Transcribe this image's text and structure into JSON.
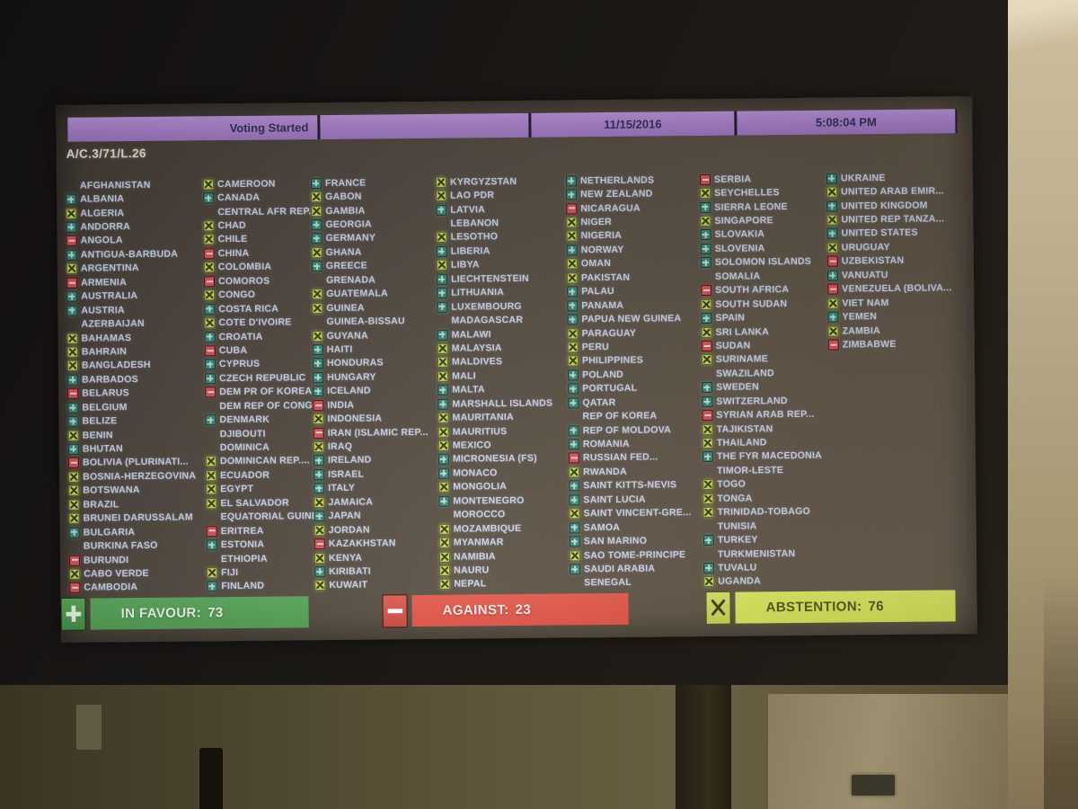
{
  "screen": {
    "header": {
      "status": "Voting Started",
      "date": "11/15/2016",
      "time": "5:08:04 PM"
    },
    "agenda_item": "A/C.3/71/L.26",
    "vote_legend": {
      "f": "in favour",
      "a": "against",
      "x": "abstention",
      "-": "not voting"
    },
    "columns": [
      [
        {
          "n": "AFGHANISTAN",
          "v": "-"
        },
        {
          "n": "ALBANIA",
          "v": "f"
        },
        {
          "n": "ALGERIA",
          "v": "x"
        },
        {
          "n": "ANDORRA",
          "v": "f"
        },
        {
          "n": "ANGOLA",
          "v": "a"
        },
        {
          "n": "ANTIGUA-BARBUDA",
          "v": "f"
        },
        {
          "n": "ARGENTINA",
          "v": "x"
        },
        {
          "n": "ARMENIA",
          "v": "a"
        },
        {
          "n": "AUSTRALIA",
          "v": "f"
        },
        {
          "n": "AUSTRIA",
          "v": "f"
        },
        {
          "n": "AZERBAIJAN",
          "v": "-"
        },
        {
          "n": "BAHAMAS",
          "v": "x"
        },
        {
          "n": "BAHRAIN",
          "v": "x"
        },
        {
          "n": "BANGLADESH",
          "v": "x"
        },
        {
          "n": "BARBADOS",
          "v": "f"
        },
        {
          "n": "BELARUS",
          "v": "a"
        },
        {
          "n": "BELGIUM",
          "v": "f"
        },
        {
          "n": "BELIZE",
          "v": "f"
        },
        {
          "n": "BENIN",
          "v": "x"
        },
        {
          "n": "BHUTAN",
          "v": "f"
        },
        {
          "n": "BOLIVIA (PLURINATI...",
          "v": "a"
        },
        {
          "n": "BOSNIA-HERZEGOVINA",
          "v": "x"
        },
        {
          "n": "BOTSWANA",
          "v": "x"
        },
        {
          "n": "BRAZIL",
          "v": "x"
        },
        {
          "n": "BRUNEI DARUSSALAM",
          "v": "x"
        },
        {
          "n": "BULGARIA",
          "v": "f"
        },
        {
          "n": "BURKINA FASO",
          "v": "-"
        },
        {
          "n": "BURUNDI",
          "v": "a"
        },
        {
          "n": "CABO VERDE",
          "v": "x"
        },
        {
          "n": "CAMBODIA",
          "v": "a"
        }
      ],
      [
        {
          "n": "CAMEROON",
          "v": "x"
        },
        {
          "n": "CANADA",
          "v": "f"
        },
        {
          "n": "CENTRAL AFR REP....",
          "v": "-"
        },
        {
          "n": "CHAD",
          "v": "x"
        },
        {
          "n": "CHILE",
          "v": "x"
        },
        {
          "n": "CHINA",
          "v": "a"
        },
        {
          "n": "COLOMBIA",
          "v": "x"
        },
        {
          "n": "COMOROS",
          "v": "a"
        },
        {
          "n": "CONGO",
          "v": "x"
        },
        {
          "n": "COSTA RICA",
          "v": "f"
        },
        {
          "n": "COTE D'IVOIRE",
          "v": "x"
        },
        {
          "n": "CROATIA",
          "v": "f"
        },
        {
          "n": "CUBA",
          "v": "a"
        },
        {
          "n": "CYPRUS",
          "v": "f"
        },
        {
          "n": "CZECH REPUBLIC",
          "v": "f"
        },
        {
          "n": "DEM PR OF KOREA",
          "v": "a"
        },
        {
          "n": "DEM REP OF CONGO",
          "v": "-"
        },
        {
          "n": "DENMARK",
          "v": "f"
        },
        {
          "n": "DJIBOUTI",
          "v": "-"
        },
        {
          "n": "DOMINICA",
          "v": "-"
        },
        {
          "n": "DOMINICAN REP....",
          "v": "x"
        },
        {
          "n": "ECUADOR",
          "v": "x"
        },
        {
          "n": "EGYPT",
          "v": "x"
        },
        {
          "n": "EL SALVADOR",
          "v": "x"
        },
        {
          "n": "EQUATORIAL GUINEA",
          "v": "-"
        },
        {
          "n": "ERITREA",
          "v": "a"
        },
        {
          "n": "ESTONIA",
          "v": "f"
        },
        {
          "n": "ETHIOPIA",
          "v": "-"
        },
        {
          "n": "FIJI",
          "v": "x"
        },
        {
          "n": "FINLAND",
          "v": "f"
        }
      ],
      [
        {
          "n": "FRANCE",
          "v": "f"
        },
        {
          "n": "GABON",
          "v": "x"
        },
        {
          "n": "GAMBIA",
          "v": "x"
        },
        {
          "n": "GEORGIA",
          "v": "f"
        },
        {
          "n": "GERMANY",
          "v": "f"
        },
        {
          "n": "GHANA",
          "v": "x"
        },
        {
          "n": "GREECE",
          "v": "f"
        },
        {
          "n": "GRENADA",
          "v": "-"
        },
        {
          "n": "GUATEMALA",
          "v": "x"
        },
        {
          "n": "GUINEA",
          "v": "x"
        },
        {
          "n": "GUINEA-BISSAU",
          "v": "-"
        },
        {
          "n": "GUYANA",
          "v": "x"
        },
        {
          "n": "HAITI",
          "v": "f"
        },
        {
          "n": "HONDURAS",
          "v": "f"
        },
        {
          "n": "HUNGARY",
          "v": "f"
        },
        {
          "n": "ICELAND",
          "v": "f"
        },
        {
          "n": "INDIA",
          "v": "a"
        },
        {
          "n": "INDONESIA",
          "v": "x"
        },
        {
          "n": "IRAN (ISLAMIC REP...",
          "v": "a"
        },
        {
          "n": "IRAQ",
          "v": "x"
        },
        {
          "n": "IRELAND",
          "v": "f"
        },
        {
          "n": "ISRAEL",
          "v": "f"
        },
        {
          "n": "ITALY",
          "v": "f"
        },
        {
          "n": "JAMAICA",
          "v": "x"
        },
        {
          "n": "JAPAN",
          "v": "f"
        },
        {
          "n": "JORDAN",
          "v": "x"
        },
        {
          "n": "KAZAKHSTAN",
          "v": "a"
        },
        {
          "n": "KENYA",
          "v": "x"
        },
        {
          "n": "KIRIBATI",
          "v": "f"
        },
        {
          "n": "KUWAIT",
          "v": "x"
        }
      ],
      [
        {
          "n": "KYRGYZSTAN",
          "v": "x"
        },
        {
          "n": "LAO PDR",
          "v": "x"
        },
        {
          "n": "LATVIA",
          "v": "f"
        },
        {
          "n": "LEBANON",
          "v": "-"
        },
        {
          "n": "LESOTHO",
          "v": "x"
        },
        {
          "n": "LIBERIA",
          "v": "f"
        },
        {
          "n": "LIBYA",
          "v": "x"
        },
        {
          "n": "LIECHTENSTEIN",
          "v": "f"
        },
        {
          "n": "LITHUANIA",
          "v": "f"
        },
        {
          "n": "LUXEMBOURG",
          "v": "f"
        },
        {
          "n": "MADAGASCAR",
          "v": "-"
        },
        {
          "n": "MALAWI",
          "v": "f"
        },
        {
          "n": "MALAYSIA",
          "v": "x"
        },
        {
          "n": "MALDIVES",
          "v": "x"
        },
        {
          "n": "MALI",
          "v": "x"
        },
        {
          "n": "MALTA",
          "v": "f"
        },
        {
          "n": "MARSHALL ISLANDS",
          "v": "f"
        },
        {
          "n": "MAURITANIA",
          "v": "x"
        },
        {
          "n": "MAURITIUS",
          "v": "x"
        },
        {
          "n": "MEXICO",
          "v": "x"
        },
        {
          "n": "MICRONESIA (FS)",
          "v": "f"
        },
        {
          "n": "MONACO",
          "v": "f"
        },
        {
          "n": "MONGOLIA",
          "v": "x"
        },
        {
          "n": "MONTENEGRO",
          "v": "f"
        },
        {
          "n": "MOROCCO",
          "v": "-"
        },
        {
          "n": "MOZAMBIQUE",
          "v": "x"
        },
        {
          "n": "MYANMAR",
          "v": "x"
        },
        {
          "n": "NAMIBIA",
          "v": "x"
        },
        {
          "n": "NAURU",
          "v": "x"
        },
        {
          "n": "NEPAL",
          "v": "x"
        }
      ],
      [
        {
          "n": "NETHERLANDS",
          "v": "f"
        },
        {
          "n": "NEW ZEALAND",
          "v": "f"
        },
        {
          "n": "NICARAGUA",
          "v": "a"
        },
        {
          "n": "NIGER",
          "v": "x"
        },
        {
          "n": "NIGERIA",
          "v": "x"
        },
        {
          "n": "NORWAY",
          "v": "f"
        },
        {
          "n": "OMAN",
          "v": "x"
        },
        {
          "n": "PAKISTAN",
          "v": "x"
        },
        {
          "n": "PALAU",
          "v": "f"
        },
        {
          "n": "PANAMA",
          "v": "f"
        },
        {
          "n": "PAPUA NEW GUINEA",
          "v": "f"
        },
        {
          "n": "PARAGUAY",
          "v": "x"
        },
        {
          "n": "PERU",
          "v": "x"
        },
        {
          "n": "PHILIPPINES",
          "v": "x"
        },
        {
          "n": "POLAND",
          "v": "f"
        },
        {
          "n": "PORTUGAL",
          "v": "f"
        },
        {
          "n": "QATAR",
          "v": "f"
        },
        {
          "n": "REP OF KOREA",
          "v": "-"
        },
        {
          "n": "REP OF MOLDOVA",
          "v": "f"
        },
        {
          "n": "ROMANIA",
          "v": "f"
        },
        {
          "n": "RUSSIAN FED...",
          "v": "a"
        },
        {
          "n": "RWANDA",
          "v": "x"
        },
        {
          "n": "SAINT KITTS-NEVIS",
          "v": "f"
        },
        {
          "n": "SAINT LUCIA",
          "v": "f"
        },
        {
          "n": "SAINT VINCENT-GRE...",
          "v": "x"
        },
        {
          "n": "SAMOA",
          "v": "f"
        },
        {
          "n": "SAN MARINO",
          "v": "f"
        },
        {
          "n": "SAO TOME-PRINCIPE",
          "v": "x"
        },
        {
          "n": "SAUDI ARABIA",
          "v": "f"
        },
        {
          "n": "SENEGAL",
          "v": "-"
        }
      ],
      [
        {
          "n": "SERBIA",
          "v": "a"
        },
        {
          "n": "SEYCHELLES",
          "v": "x"
        },
        {
          "n": "SIERRA LEONE",
          "v": "f"
        },
        {
          "n": "SINGAPORE",
          "v": "x"
        },
        {
          "n": "SLOVAKIA",
          "v": "f"
        },
        {
          "n": "SLOVENIA",
          "v": "f"
        },
        {
          "n": "SOLOMON ISLANDS",
          "v": "f"
        },
        {
          "n": "SOMALIA",
          "v": "-"
        },
        {
          "n": "SOUTH AFRICA",
          "v": "a"
        },
        {
          "n": "SOUTH SUDAN",
          "v": "x"
        },
        {
          "n": "SPAIN",
          "v": "f"
        },
        {
          "n": "SRI LANKA",
          "v": "x"
        },
        {
          "n": "SUDAN",
          "v": "a"
        },
        {
          "n": "SURINAME",
          "v": "x"
        },
        {
          "n": "SWAZILAND",
          "v": "-"
        },
        {
          "n": "SWEDEN",
          "v": "f"
        },
        {
          "n": "SWITZERLAND",
          "v": "f"
        },
        {
          "n": "SYRIAN ARAB REP...",
          "v": "a"
        },
        {
          "n": "TAJIKISTAN",
          "v": "x"
        },
        {
          "n": "THAILAND",
          "v": "x"
        },
        {
          "n": "THE FYR MACEDONIA",
          "v": "f"
        },
        {
          "n": "TIMOR-LESTE",
          "v": "-"
        },
        {
          "n": "TOGO",
          "v": "x"
        },
        {
          "n": "TONGA",
          "v": "x"
        },
        {
          "n": "TRINIDAD-TOBAGO",
          "v": "x"
        },
        {
          "n": "TUNISIA",
          "v": "-"
        },
        {
          "n": "TURKEY",
          "v": "f"
        },
        {
          "n": "TURKMENISTAN",
          "v": "-"
        },
        {
          "n": "TUVALU",
          "v": "f"
        },
        {
          "n": "UGANDA",
          "v": "x"
        }
      ],
      [
        {
          "n": "UKRAINE",
          "v": "f"
        },
        {
          "n": "UNITED ARAB EMIR...",
          "v": "x"
        },
        {
          "n": "UNITED KINGDOM",
          "v": "f"
        },
        {
          "n": "UNITED REP TANZA...",
          "v": "x"
        },
        {
          "n": "UNITED STATES",
          "v": "f"
        },
        {
          "n": "URUGUAY",
          "v": "x"
        },
        {
          "n": "UZBEKISTAN",
          "v": "a"
        },
        {
          "n": "VANUATU",
          "v": "f"
        },
        {
          "n": "VENEZUELA (BOLIVA...",
          "v": "a"
        },
        {
          "n": "VIET NAM",
          "v": "x"
        },
        {
          "n": "YEMEN",
          "v": "f"
        },
        {
          "n": "ZAMBIA",
          "v": "x"
        },
        {
          "n": "ZIMBABWE",
          "v": "a"
        }
      ]
    ],
    "summary": {
      "in_favour": {
        "label": "IN FAVOUR:",
        "count": 73
      },
      "against": {
        "label": "AGAINST:",
        "count": 23
      },
      "abstention": {
        "label": "ABSTENTION:",
        "count": 76
      }
    },
    "colors": {
      "header-purple": "#ac84cf",
      "header-text": "#35305c",
      "agenda-text": "#ece5d3",
      "country-text": "#ccd4e8",
      "favour": "#3f8478",
      "plus": "#aee6da",
      "against": "#d5535c",
      "abstain": "#c7d763",
      "sum-green": "#4f9e52",
      "sum-red": "#dd4f44",
      "sum-yellow": "#d6e456"
    }
  }
}
